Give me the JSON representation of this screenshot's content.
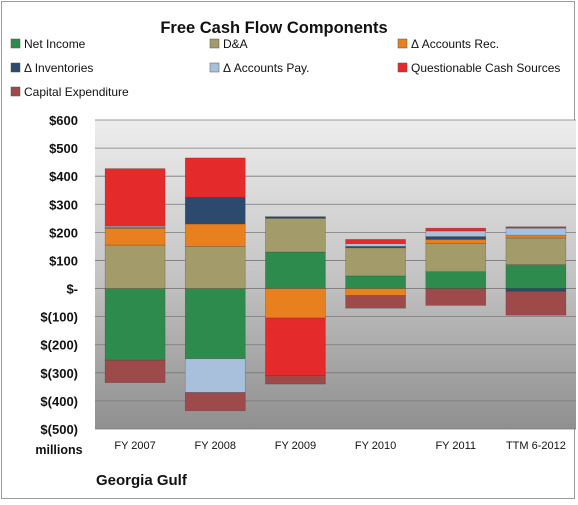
{
  "chart_data": {
    "type": "bar",
    "stacked": true,
    "title": "Free Cash Flow Components",
    "unit_label": "millions",
    "company": "Georgia Gulf",
    "categories": [
      "FY 2007",
      "FY 2008",
      "FY 2009",
      "FY 2010",
      "FY 2011",
      "TTM 6-2012"
    ],
    "y_ticks": [
      "$600",
      "$500",
      "$400",
      "$300",
      "$200",
      "$100",
      "$-",
      "$(100)",
      "$(200)",
      "$(300)",
      "$(400)",
      "$(500)"
    ],
    "ylim": [
      -500,
      600
    ],
    "grid": true,
    "legend_position": "top",
    "series": [
      {
        "name": "Net Income",
        "color": "#2e8b4e",
        "values": [
          -255,
          -250,
          130,
          45,
          60,
          85
        ]
      },
      {
        "name": "D&A",
        "color": "#a39b6a",
        "values": [
          155,
          150,
          120,
          100,
          100,
          95
        ]
      },
      {
        "name": "Δ Accounts Rec.",
        "color": "#e8801f",
        "values": [
          60,
          80,
          -105,
          -25,
          15,
          10
        ]
      },
      {
        "name": "Δ Inventories",
        "color": "#2b4a6e",
        "values": [
          2,
          95,
          5,
          5,
          10,
          -10
        ]
      },
      {
        "name": "Δ Accounts Pay.",
        "color": "#a8c0dc",
        "values": [
          5,
          -120,
          2,
          10,
          20,
          25
        ]
      },
      {
        "name": "Questionable Cash Sources",
        "color": "#e42a2a",
        "values": [
          205,
          140,
          -205,
          15,
          10,
          5
        ]
      },
      {
        "name": "Capital Expenditure",
        "color": "#9e4a4a",
        "values": [
          -80,
          -65,
          -30,
          -45,
          -60,
          -85
        ]
      }
    ]
  }
}
